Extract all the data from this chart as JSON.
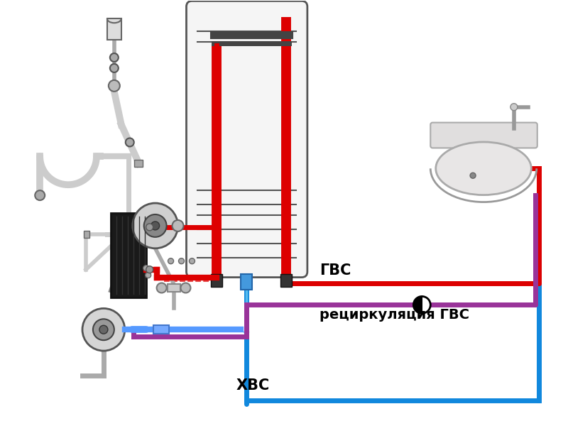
{
  "bg_color": "#ffffff",
  "colors": {
    "red": "#dd0000",
    "blue": "#1188dd",
    "purple": "#993399",
    "light_blue": "#44aaee",
    "black": "#111111",
    "gray": "#999999",
    "dark_gray": "#444444",
    "light_gray": "#cccccc",
    "boiler_fill": "#f5f5f5",
    "boiler_border": "#555555",
    "pipe_gray": "#aaaaaa",
    "white": "#ffffff"
  },
  "labels": {
    "gvs": "ГВС",
    "recirculation": "рециркуляция ГВС",
    "hvs": "ХВС"
  },
  "figsize": [
    8.0,
    6.0
  ],
  "dpi": 100
}
